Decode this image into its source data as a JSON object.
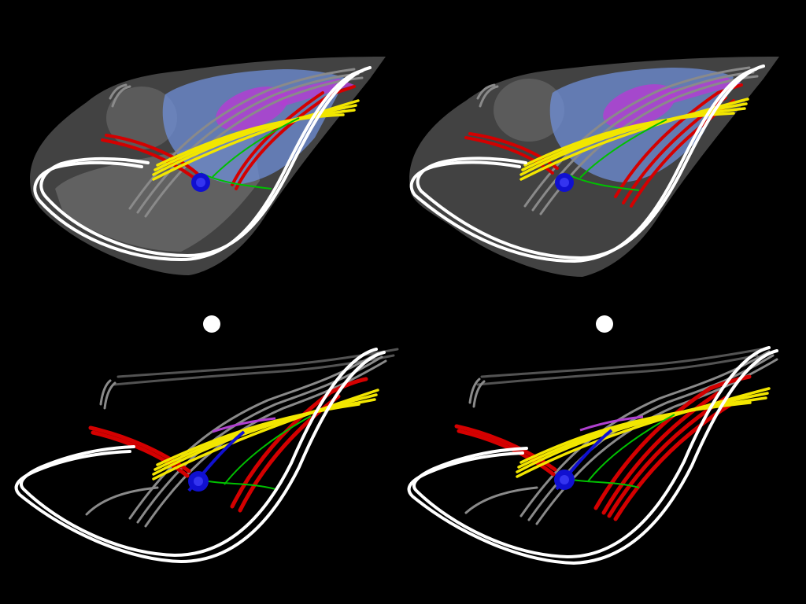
{
  "figure": {
    "panels": [
      {
        "id": "top-left",
        "view": "with-surfaces"
      },
      {
        "id": "top-right",
        "view": "with-surfaces"
      },
      {
        "id": "bottom-left",
        "view": "fibers-only"
      },
      {
        "id": "bottom-right",
        "view": "fibers-only"
      }
    ],
    "colors": {
      "background": "#000000",
      "white_tract": "#ffffff",
      "grey_tract": "#8a8a8a",
      "yellow_tract": "#f2e600",
      "red_tract": "#d40000",
      "blue_structure": "#1010d0",
      "green_tract": "#00c000",
      "magenta_structure": "#b040d0",
      "blue_surface": "#6f8fd8",
      "grey_surface": "#bdbdbd"
    }
  }
}
